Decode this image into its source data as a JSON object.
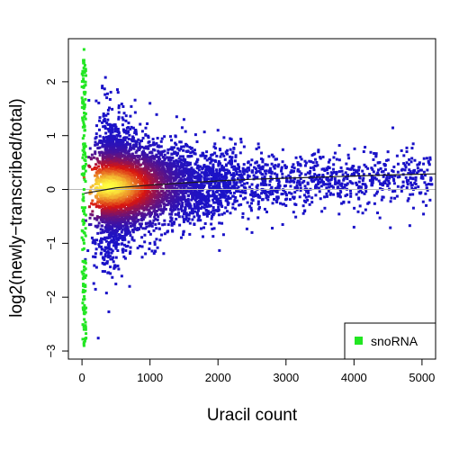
{
  "chart_data": {
    "type": "scatter",
    "title": "",
    "xlabel": "Uracil count",
    "ylabel": "log2(newly−transcribed/total)",
    "xlim": [
      -200,
      5200
    ],
    "ylim": [
      -3.15,
      2.8
    ],
    "xticks": [
      0,
      1000,
      2000,
      3000,
      4000,
      5000
    ],
    "yticks": [
      -3,
      -2,
      -1,
      0,
      1,
      2
    ],
    "xtick_labels": [
      "0",
      "1000",
      "2000",
      "3000",
      "4000",
      "5000"
    ],
    "ytick_labels": [
      "−3",
      "−2",
      "−1",
      "0",
      "1",
      "2"
    ],
    "grid": false,
    "legend_position": "bottom-right",
    "colors": {
      "density_low": "#1a12c8",
      "density_mid": "#d81410",
      "density_high": "#ffff40",
      "snorna": "#22e622",
      "trend_line": "#1a1a1a",
      "zero_line": "#b8b8b8"
    },
    "series": [
      {
        "name": "",
        "kind": "density-colored scatter",
        "points_approx": [
          [
            50,
            -1.3
          ],
          [
            100,
            0.6
          ],
          [
            150,
            -0.9
          ],
          [
            200,
            0.1
          ],
          [
            300,
            0.0
          ],
          [
            400,
            0.05
          ],
          [
            500,
            0.1
          ],
          [
            600,
            1.2
          ],
          [
            700,
            -1.8
          ],
          [
            800,
            0.8
          ],
          [
            1000,
            -1.0
          ],
          [
            1000,
            1.6
          ],
          [
            1200,
            0.4
          ],
          [
            1500,
            -0.6
          ],
          [
            1500,
            1.3
          ],
          [
            1800,
            0.3
          ],
          [
            2000,
            -0.4
          ],
          [
            2000,
            1.1
          ],
          [
            2200,
            0.5
          ],
          [
            2500,
            0.0
          ],
          [
            2500,
            -0.8
          ],
          [
            3000,
            0.4
          ],
          [
            3000,
            -0.3
          ],
          [
            3500,
            0.2
          ],
          [
            3500,
            0.6
          ],
          [
            4000,
            0.3
          ],
          [
            4000,
            -0.7
          ],
          [
            4500,
            0.7
          ],
          [
            4800,
            0.3
          ],
          [
            5100,
            0.1
          ]
        ],
        "bulk": {
          "x_center": 400,
          "y_center": 0.05
        },
        "trend": {
          "x": [
            0,
            500,
            1000,
            1500,
            2000,
            2500,
            3000,
            3500,
            4000,
            4500,
            5200
          ],
          "y": [
            -0.08,
            0.03,
            0.08,
            0.12,
            0.16,
            0.19,
            0.21,
            0.23,
            0.25,
            0.27,
            0.29
          ]
        }
      },
      {
        "name": "snoRNA",
        "kind": "points",
        "x_range": [
          0,
          60
        ],
        "y_range": [
          -2.9,
          2.6
        ],
        "points_approx": [
          [
            30,
            2.6
          ],
          [
            30,
            2.4
          ],
          [
            30,
            2.2
          ],
          [
            30,
            2.0
          ],
          [
            30,
            1.8
          ],
          [
            30,
            1.5
          ],
          [
            30,
            1.2
          ],
          [
            30,
            1.0
          ],
          [
            30,
            0.7
          ],
          [
            30,
            0.4
          ],
          [
            30,
            0.0
          ],
          [
            30,
            -0.4
          ],
          [
            30,
            -0.8
          ],
          [
            30,
            -1.1
          ],
          [
            30,
            -1.5
          ],
          [
            30,
            -1.9
          ],
          [
            30,
            -2.3
          ],
          [
            30,
            -2.6
          ],
          [
            30,
            -2.9
          ]
        ]
      }
    ]
  }
}
